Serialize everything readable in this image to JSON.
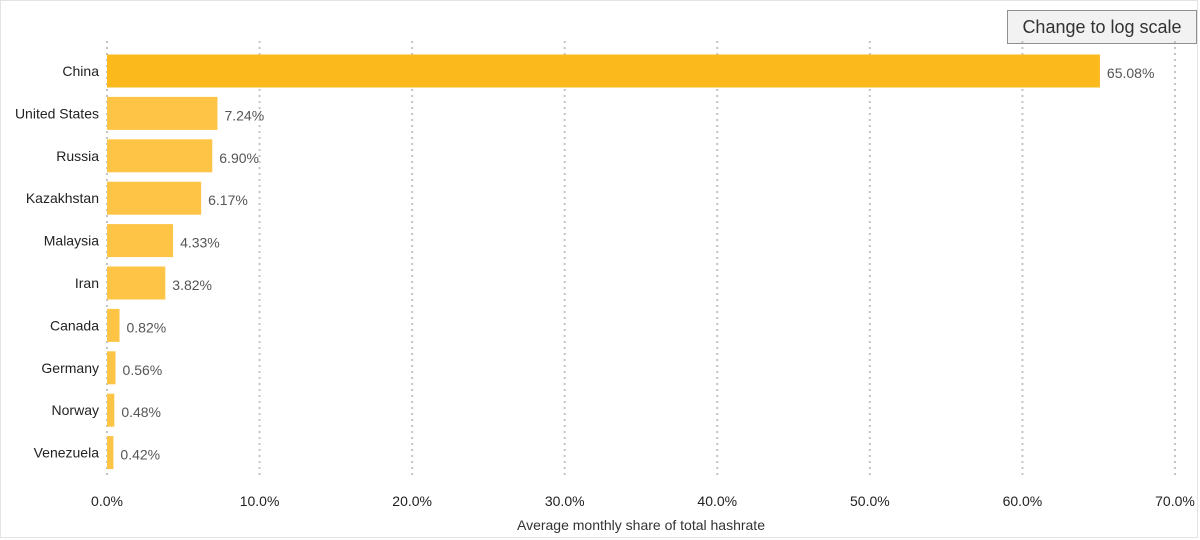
{
  "toolbar": {
    "log_scale_label": "Change to log scale"
  },
  "chart_data": {
    "type": "bar",
    "orientation": "horizontal",
    "categories": [
      "China",
      "United States",
      "Russia",
      "Kazakhstan",
      "Malaysia",
      "Iran",
      "Canada",
      "Germany",
      "Norway",
      "Venezuela"
    ],
    "values": [
      65.08,
      7.24,
      6.9,
      6.17,
      4.33,
      3.82,
      0.82,
      0.56,
      0.48,
      0.42
    ],
    "value_labels": [
      "65.08%",
      "7.24%",
      "6.90%",
      "6.17%",
      "4.33%",
      "3.82%",
      "0.82%",
      "0.56%",
      "0.48%",
      "0.42%"
    ],
    "xlabel": "Average monthly share of total hashrate",
    "ylabel": "",
    "xlim": [
      0,
      70
    ],
    "xticks": [
      0,
      10,
      20,
      30,
      40,
      50,
      60,
      70
    ],
    "xtick_labels": [
      "0.0%",
      "10.0%",
      "20.0%",
      "30.0%",
      "40.0%",
      "50.0%",
      "60.0%",
      "70.0%"
    ],
    "grid": "vertical dotted",
    "colors": {
      "highlight": "#fbb91b",
      "bar": "#fec445"
    }
  }
}
